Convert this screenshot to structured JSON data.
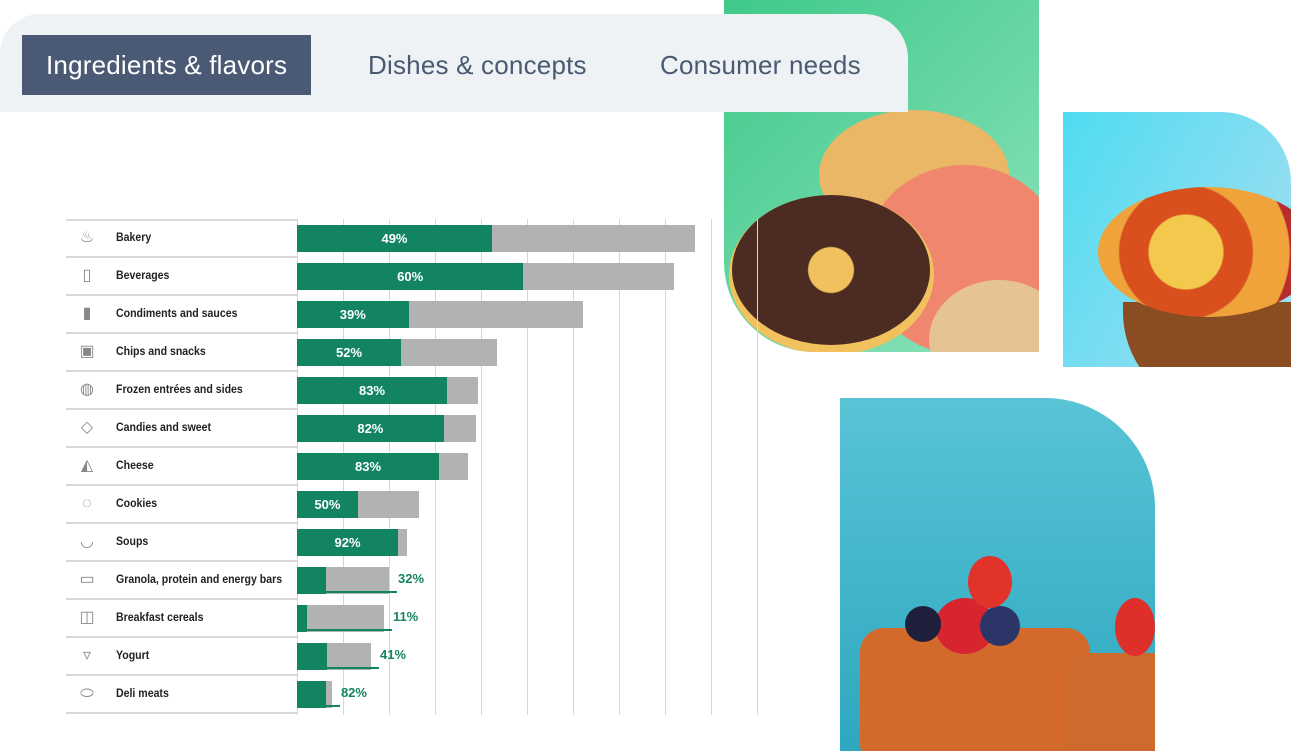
{
  "tabs": [
    {
      "label": "Ingredients & flavors",
      "active": true
    },
    {
      "label": "Dishes & concepts",
      "active": false
    },
    {
      "label": "Consumer needs",
      "active": false
    }
  ],
  "images": {
    "donuts": "donuts-photo",
    "chips": "vegetable-chips-bowl-photo",
    "pastry": "berry-pastry-photo"
  },
  "colors": {
    "share": "#138462",
    "total": "#b1b3b3",
    "tab_active": "#4b5a74",
    "tabbar": "#eff2f5"
  },
  "chart_data": {
    "type": "bar",
    "orientation": "horizontal",
    "stacked_overlay": true,
    "grid": true,
    "xlim_gridline_units": [
      0,
      10
    ],
    "note": "Gray bar = total (relative, in gridline units, no tick labels shown); green portion = labeled share %",
    "categories": [
      {
        "label": "Bakery",
        "icon": "cupcake-icon",
        "share": 49,
        "total": 8.65
      },
      {
        "label": "Beverages",
        "icon": "bottle-icon",
        "share": 60,
        "total": 8.2
      },
      {
        "label": "Condiments and sauces",
        "icon": "sauce-bottle-icon",
        "share": 39,
        "total": 6.22
      },
      {
        "label": "Chips and snacks",
        "icon": "chips-bag-icon",
        "share": 52,
        "total": 4.35
      },
      {
        "label": "Frozen entrées and sides",
        "icon": "pizza-icon",
        "share": 83,
        "total": 3.93
      },
      {
        "label": "Candies and sweet",
        "icon": "candy-icon",
        "share": 82,
        "total": 3.89
      },
      {
        "label": "Cheese",
        "icon": "cheese-icon",
        "share": 83,
        "total": 3.72
      },
      {
        "label": "Cookies",
        "icon": "cookie-icon",
        "share": 50,
        "total": 2.65
      },
      {
        "label": "Soups",
        "icon": "soup-cup-icon",
        "share": 92,
        "total": 2.39
      },
      {
        "label": "Granola, protein and energy bars",
        "icon": "bar-icon",
        "share": 32,
        "total": 2.0
      },
      {
        "label": "Breakfast cereals",
        "icon": "cereal-icon",
        "share": 11,
        "total": 1.89
      },
      {
        "label": "Yogurt",
        "icon": "yogurt-icon",
        "share": 41,
        "total": 1.61
      },
      {
        "label": "Deli meats",
        "icon": "salami-icon",
        "share": 82,
        "total": 0.76
      }
    ]
  }
}
